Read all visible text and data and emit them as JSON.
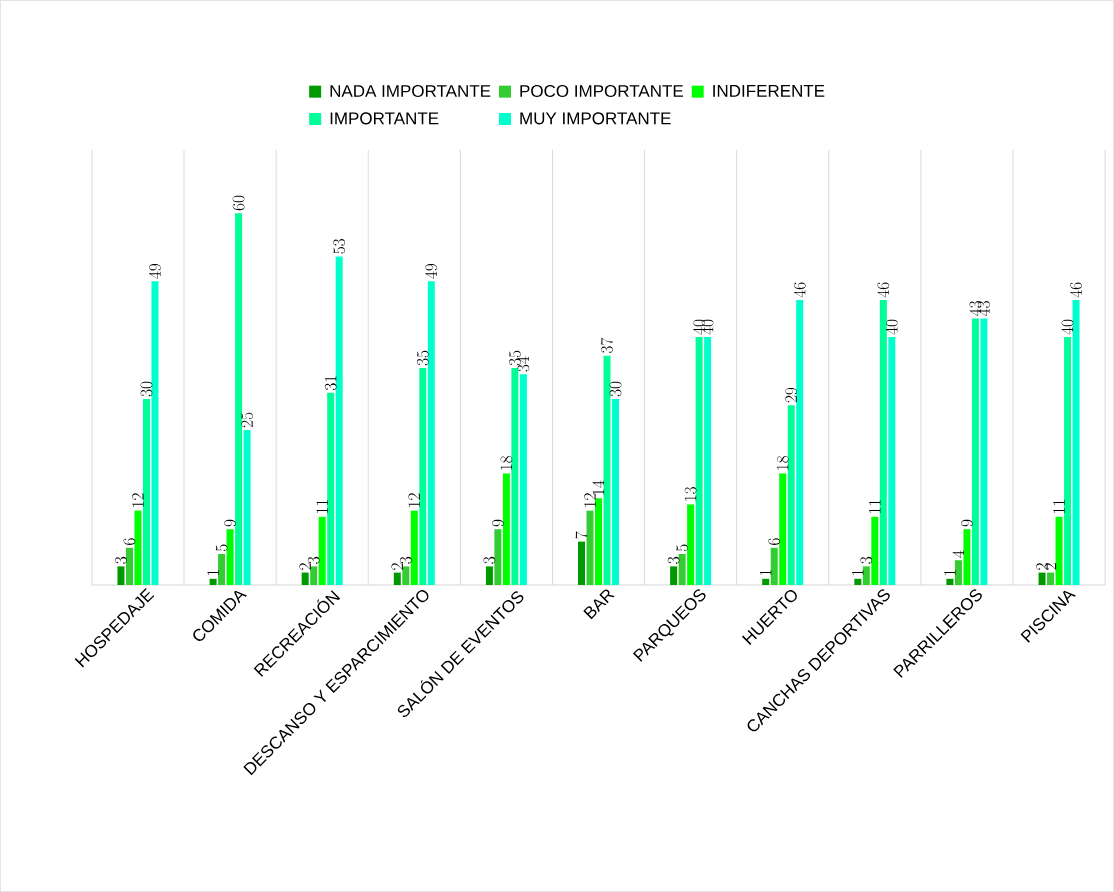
{
  "chart_data": {
    "type": "bar",
    "categories": [
      "HOSPEDAJE",
      "COMIDA",
      "RECREACIÓN",
      "DESCANSO Y ESPARCIMIENTO",
      "SALÓN DE EVENTOS",
      "BAR",
      "PARQUEOS",
      "HUERTO",
      "CANCHAS DEPORTIVAS",
      "PARRILLEROS",
      "PISCINA"
    ],
    "series": [
      {
        "name": "NADA IMPORTANTE",
        "color": "#009900",
        "values": [
          3,
          1,
          2,
          2,
          3,
          7,
          3,
          1,
          1,
          1,
          2
        ]
      },
      {
        "name": "POCO IMPORTANTE",
        "color": "#33cc33",
        "values": [
          6,
          5,
          3,
          3,
          9,
          12,
          5,
          6,
          3,
          4,
          2
        ]
      },
      {
        "name": "INDIFERENTE",
        "color": "#00ff00",
        "values": [
          12,
          9,
          11,
          12,
          18,
          14,
          13,
          18,
          11,
          9,
          11
        ]
      },
      {
        "name": "IMPORTANTE",
        "color": "#00ff99",
        "values": [
          30,
          60,
          31,
          35,
          35,
          37,
          40,
          29,
          46,
          43,
          40
        ]
      },
      {
        "name": "MUY IMPORTANTE",
        "color": "#00ffcc",
        "values": [
          49,
          25,
          53,
          49,
          34,
          30,
          40,
          46,
          40,
          43,
          46
        ]
      }
    ],
    "data_labels": true,
    "grid": "x",
    "legend": "top"
  }
}
